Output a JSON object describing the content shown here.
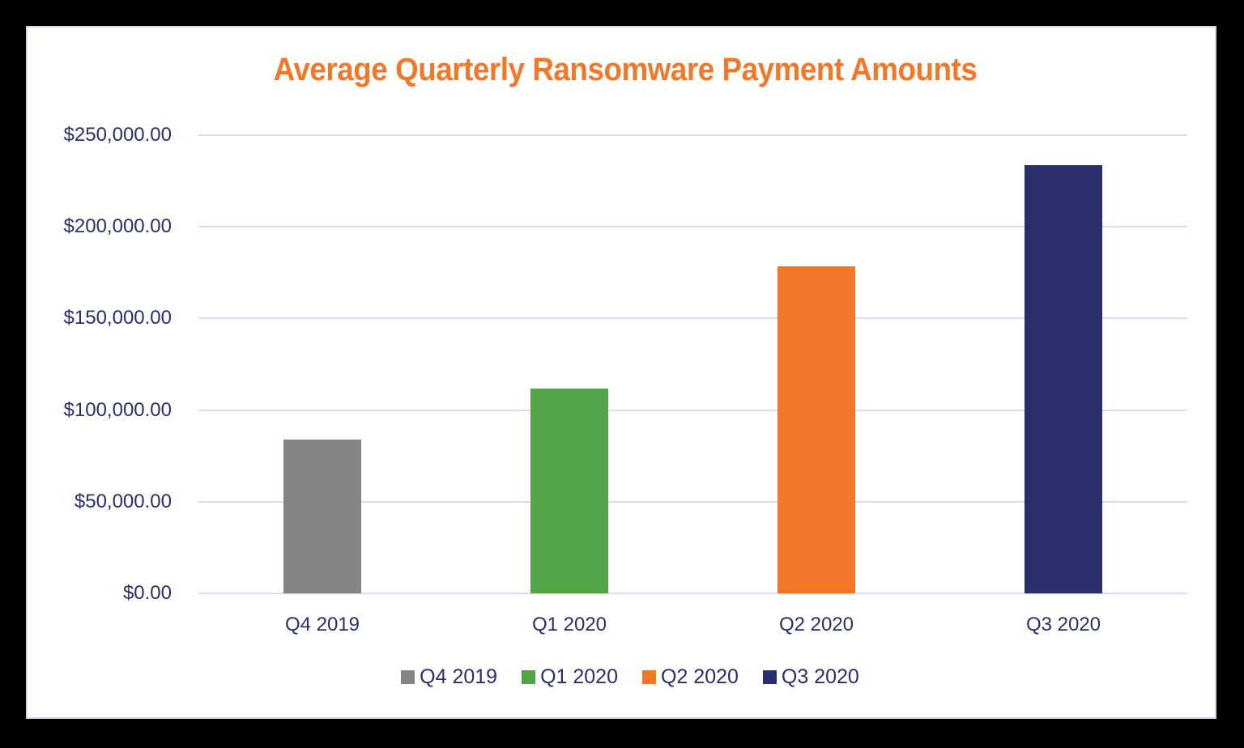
{
  "chart_data": {
    "type": "bar",
    "title": "Average Quarterly Ransomware Payment Amounts",
    "xlabel": "",
    "ylabel": "",
    "categories": [
      "Q4 2019",
      "Q1 2020",
      "Q2 2020",
      "Q3 2020"
    ],
    "values": [
      84116,
      111605,
      178254,
      233817
    ],
    "colors": [
      "#848484",
      "#53a348",
      "#f07828",
      "#2a2f6c"
    ],
    "ylim": [
      0,
      250000
    ],
    "yticks": [
      "$0.00",
      "$50,000.00",
      "$100,000.00",
      "$150,000.00",
      "$200,000.00",
      "$250,000.00"
    ],
    "grid": true,
    "legend_position": "bottom",
    "legend": [
      "Q4 2019",
      "Q1 2020",
      "Q2 2020",
      "Q3 2020"
    ]
  },
  "colors": {
    "title": "#f07828",
    "axis_text": "#2b2e6b",
    "gridline": "#dcdcf0",
    "card_border": "#d4d4ea",
    "background": "#000000"
  }
}
